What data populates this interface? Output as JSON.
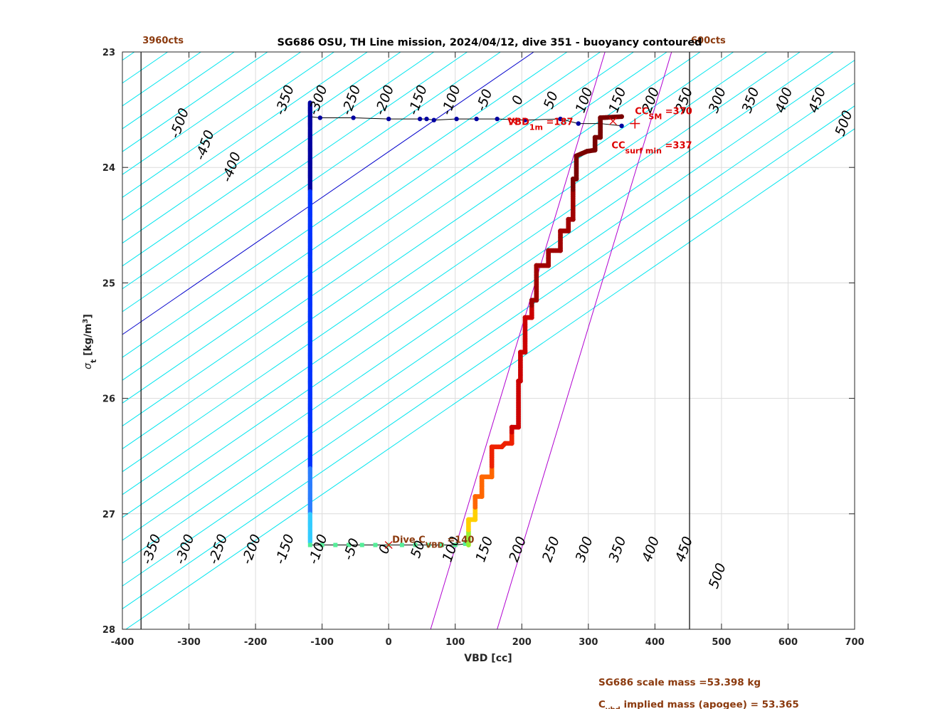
{
  "chart_data": {
    "type": "scatter",
    "title": "SG686 OSU, TH Line mission, 2024/04/12, dive 351 - buoyancy contoured",
    "xlabel": "VBD [cc]",
    "ylabel_main": "σ",
    "ylabel_sub": "t",
    "ylabel_rest": " [kg/m",
    "ylabel_sup": "3",
    "ylabel_end": "]",
    "xlim": [
      -400,
      700
    ],
    "ylim": [
      23,
      28
    ],
    "y_reversed": true,
    "grid": true,
    "xticks": [
      -400,
      -300,
      -200,
      -100,
      0,
      100,
      200,
      300,
      400,
      500,
      600,
      700
    ],
    "yticks": [
      23,
      24,
      25,
      26,
      27,
      28
    ],
    "vlines": [
      {
        "x": -372,
        "label": "3960cts"
      },
      {
        "x": 452,
        "label": "600cts"
      }
    ],
    "buoyancy_contours": {
      "color": "#00E5EE",
      "levels": [
        -500,
        -450,
        -400,
        -350,
        -300,
        -250,
        -200,
        -150,
        -100,
        -50,
        0,
        50,
        100,
        150,
        200,
        250,
        300,
        350,
        400,
        450,
        500
      ],
      "slope_cc_per_sigma": -138,
      "highlight_color": "#0000CC",
      "highlight_level": 0,
      "top_labels": [
        {
          "value": "-500",
          "x": -308,
          "y": 23.63
        },
        {
          "value": "-450",
          "x": -270,
          "y": 23.82
        },
        {
          "value": "-400",
          "x": -230,
          "y": 24.01
        },
        {
          "value": "-350",
          "x": -150,
          "y": 23.43
        },
        {
          "value": "-300",
          "x": -100,
          "y": 23.43
        },
        {
          "value": "-250",
          "x": -50,
          "y": 23.43
        },
        {
          "value": "-200",
          "x": 0,
          "y": 23.43
        },
        {
          "value": "-150",
          "x": 50,
          "y": 23.43
        },
        {
          "value": "-100",
          "x": 100,
          "y": 23.43
        },
        {
          "value": "-50",
          "x": 150,
          "y": 23.43
        },
        {
          "value": "0",
          "x": 200,
          "y": 23.43
        },
        {
          "value": "50",
          "x": 250,
          "y": 23.43
        },
        {
          "value": "100",
          "x": 300,
          "y": 23.43
        },
        {
          "value": "150",
          "x": 350,
          "y": 23.43
        },
        {
          "value": "200",
          "x": 400,
          "y": 23.43
        },
        {
          "value": "250",
          "x": 450,
          "y": 23.43
        },
        {
          "value": "300",
          "x": 500,
          "y": 23.43
        },
        {
          "value": "350",
          "x": 550,
          "y": 23.43
        },
        {
          "value": "400",
          "x": 600,
          "y": 23.43
        },
        {
          "value": "450",
          "x": 650,
          "y": 23.43
        },
        {
          "value": "500",
          "x": 690,
          "y": 23.63
        }
      ],
      "bottom_labels": [
        {
          "value": "-350",
          "x": -350,
          "y": 27.32
        },
        {
          "value": "-300",
          "x": -300,
          "y": 27.32
        },
        {
          "value": "-250",
          "x": -250,
          "y": 27.32
        },
        {
          "value": "-200",
          "x": -200,
          "y": 27.32
        },
        {
          "value": "-150",
          "x": -150,
          "y": 27.32
        },
        {
          "value": "-100",
          "x": -100,
          "y": 27.32
        },
        {
          "value": "-50",
          "x": -50,
          "y": 27.32
        },
        {
          "value": "0",
          "x": 0,
          "y": 27.32
        },
        {
          "value": "50",
          "x": 50,
          "y": 27.32
        },
        {
          "value": "100",
          "x": 100,
          "y": 27.32
        },
        {
          "value": "150",
          "x": 150,
          "y": 27.32
        },
        {
          "value": "200",
          "x": 200,
          "y": 27.32
        },
        {
          "value": "250",
          "x": 250,
          "y": 27.32
        },
        {
          "value": "300",
          "x": 300,
          "y": 27.32
        },
        {
          "value": "350",
          "x": 350,
          "y": 27.32
        },
        {
          "value": "400",
          "x": 400,
          "y": 27.32
        },
        {
          "value": "450",
          "x": 450,
          "y": 27.32
        },
        {
          "value": "500",
          "x": 500,
          "y": 27.55
        }
      ]
    },
    "magenta_lines": {
      "color": "#B000D0",
      "lines": [
        {
          "x_at_sigma23": 325,
          "x_at_sigma28": 63
        },
        {
          "x_at_sigma23": 425,
          "x_at_sigma28": 163
        }
      ]
    },
    "dive_points": {
      "color_top": "#0000A0",
      "color_mid": "#0033FF",
      "segments": [
        {
          "x": -118,
          "y0": 23.44,
          "y1": 27.25
        }
      ],
      "surface": [
        {
          "x": -118,
          "y": 23.56
        },
        {
          "x": -103,
          "y": 23.57
        },
        {
          "x": -53,
          "y": 23.57
        },
        {
          "x": 0,
          "y": 23.58
        },
        {
          "x": 47,
          "y": 23.58
        },
        {
          "x": 57,
          "y": 23.58
        },
        {
          "x": 68,
          "y": 23.59
        },
        {
          "x": 102,
          "y": 23.58
        },
        {
          "x": 132,
          "y": 23.58
        },
        {
          "x": 163,
          "y": 23.58
        },
        {
          "x": 205,
          "y": 23.59
        },
        {
          "x": 258,
          "y": 23.58
        },
        {
          "x": 285,
          "y": 23.62
        },
        {
          "x": 318,
          "y": 23.62
        },
        {
          "x": 350,
          "y": 23.64
        }
      ],
      "apogee": [
        {
          "x": -118,
          "y": 27.27
        },
        {
          "x": -100,
          "y": 27.27
        },
        {
          "x": -80,
          "y": 27.27
        },
        {
          "x": -60,
          "y": 27.27
        },
        {
          "x": -40,
          "y": 27.27
        },
        {
          "x": -20,
          "y": 27.27
        },
        {
          "x": 0,
          "y": 27.27
        },
        {
          "x": 20,
          "y": 27.27
        },
        {
          "x": 40,
          "y": 27.27
        },
        {
          "x": 60,
          "y": 27.27
        },
        {
          "x": 80,
          "y": 27.27
        },
        {
          "x": 100,
          "y": 27.27
        },
        {
          "x": 115,
          "y": 27.26
        }
      ]
    },
    "climb_points": {
      "color_top": "#7A0000",
      "color_mid": "#CC0000",
      "color_low": "#FF6600",
      "color_bottom": "#FFD000",
      "path": [
        {
          "x": 120,
          "y": 27.27
        },
        {
          "x": 120,
          "y": 27.05
        },
        {
          "x": 130,
          "y": 27.05
        },
        {
          "x": 130,
          "y": 26.85
        },
        {
          "x": 140,
          "y": 26.85
        },
        {
          "x": 140,
          "y": 26.68
        },
        {
          "x": 155,
          "y": 26.68
        },
        {
          "x": 155,
          "y": 26.42
        },
        {
          "x": 170,
          "y": 26.42
        },
        {
          "x": 175,
          "y": 26.39
        },
        {
          "x": 185,
          "y": 26.39
        },
        {
          "x": 185,
          "y": 26.25
        },
        {
          "x": 195,
          "y": 26.25
        },
        {
          "x": 195,
          "y": 25.85
        },
        {
          "x": 198,
          "y": 25.85
        },
        {
          "x": 198,
          "y": 25.6
        },
        {
          "x": 205,
          "y": 25.6
        },
        {
          "x": 205,
          "y": 25.3
        },
        {
          "x": 215,
          "y": 25.3
        },
        {
          "x": 215,
          "y": 25.15
        },
        {
          "x": 222,
          "y": 25.15
        },
        {
          "x": 222,
          "y": 24.85
        },
        {
          "x": 240,
          "y": 24.85
        },
        {
          "x": 240,
          "y": 24.72
        },
        {
          "x": 258,
          "y": 24.72
        },
        {
          "x": 258,
          "y": 24.55
        },
        {
          "x": 270,
          "y": 24.55
        },
        {
          "x": 270,
          "y": 24.45
        },
        {
          "x": 277,
          "y": 24.45
        },
        {
          "x": 277,
          "y": 24.1
        },
        {
          "x": 282,
          "y": 24.1
        },
        {
          "x": 282,
          "y": 23.9
        },
        {
          "x": 298,
          "y": 23.86
        },
        {
          "x": 310,
          "y": 23.85
        },
        {
          "x": 310,
          "y": 23.74
        },
        {
          "x": 318,
          "y": 23.74
        },
        {
          "x": 318,
          "y": 23.57
        },
        {
          "x": 350,
          "y": 23.56
        }
      ]
    },
    "annotations": {
      "vbd_1m": {
        "prefix": "VBD",
        "sub": "1m",
        "suffix": " =187",
        "x": 187,
        "y": 23.6,
        "color": "#DD0000"
      },
      "cc_sm": {
        "prefix": "CC",
        "sub": "SM",
        "suffix": " =370",
        "x": 370,
        "y": 23.62,
        "color": "#DD0000"
      },
      "cc_surf_min": {
        "prefix": "CC",
        "sub": "surf min",
        "suffix": " =337",
        "x": 337,
        "y": 23.6,
        "color": "#DD0000"
      },
      "dive_cvbd": {
        "prefix": "Dive C",
        "sub": "VBD",
        "suffix": " =140",
        "x": 0,
        "y": 27.27,
        "color": "#8B3A0E"
      }
    },
    "footer_1": "SG686 scale mass =53.398 kg",
    "footer_2_prefix": "C",
    "footer_2_sub": "vbd",
    "footer_2_suffix": " implied mass (apogee) = 53.365"
  }
}
